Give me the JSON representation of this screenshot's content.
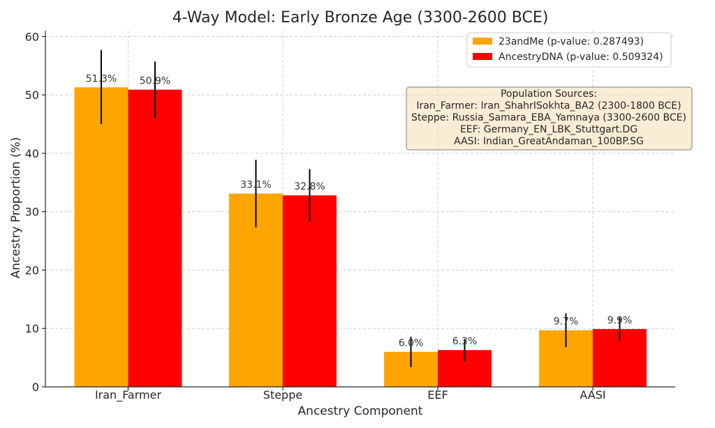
{
  "chart_data": {
    "type": "bar",
    "title": "4-Way Model: Early Bronze Age (3300-2600 BCE)",
    "xlabel": "Ancestry Component",
    "ylabel": "Ancestry Proportion (%)",
    "categories": [
      "Iran_Farmer",
      "Steppe",
      "EEF",
      "AASI"
    ],
    "ylim": [
      0,
      61
    ],
    "yticks": [
      0,
      10,
      20,
      30,
      40,
      50,
      60
    ],
    "grid": true,
    "legend_position": "top-right",
    "series": [
      {
        "name": "23andMe (p-value: 0.287493)",
        "color": "#FFA500",
        "values": [
          51.3,
          33.1,
          6.0,
          9.7
        ],
        "labels": [
          "51.3%",
          "33.1%",
          "6.0%",
          "9.7%"
        ],
        "error_low": [
          45.0,
          27.3,
          3.4,
          6.8
        ],
        "error_high": [
          57.7,
          38.9,
          8.6,
          12.6
        ]
      },
      {
        "name": "AncestryDNA (p-value: 0.509324)",
        "color": "#FF0000",
        "values": [
          50.9,
          32.8,
          6.3,
          9.9
        ],
        "labels": [
          "50.9%",
          "32.8%",
          "6.3%",
          "9.9%"
        ],
        "error_low": [
          46.1,
          28.3,
          4.4,
          7.9
        ],
        "error_high": [
          55.7,
          37.3,
          8.2,
          11.9
        ]
      }
    ],
    "annotation": {
      "lines": [
        "Population Sources:",
        "Iran_Farmer: Iran_ShahrISokhta_BA2 (2300-1800 BCE)",
        "Steppe: Russia_Samara_EBA_Yamnaya (3300-2600 BCE)",
        "EEF: Germany_EN_LBK_Stuttgart.DG",
        "AASI: Indian_GreatAndaman_100BP.SG"
      ],
      "background": "#F5DEB3"
    }
  }
}
